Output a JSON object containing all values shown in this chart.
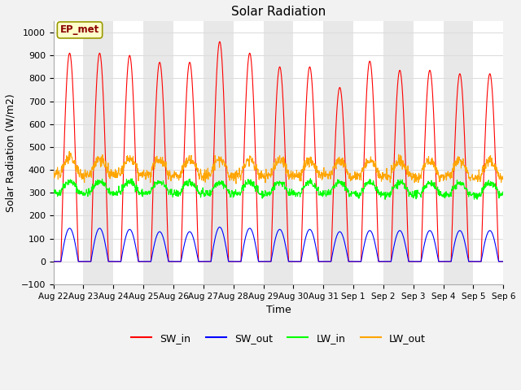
{
  "title": "Solar Radiation",
  "xlabel": "Time",
  "ylabel": "Solar Radiation (W/m2)",
  "ylim": [
    -100,
    1050
  ],
  "xlim": [
    0,
    15
  ],
  "x_tick_labels": [
    "Aug 22",
    "Aug 23",
    "Aug 24",
    "Aug 25",
    "Aug 26",
    "Aug 27",
    "Aug 28",
    "Aug 29",
    "Aug 30",
    "Aug 31",
    "Sep 1",
    "Sep 2",
    "Sep 3",
    "Sep 4",
    "Sep 5",
    "Sep 6"
  ],
  "annotation_text": "EP_met",
  "annotation_box_color": "#FFFFCC",
  "annotation_box_edge": "#AAAAAA",
  "colors": {
    "SW_in": "#FF0000",
    "SW_out": "#0000FF",
    "LW_in": "#00FF00",
    "LW_out": "#FFA500"
  },
  "legend_labels": [
    "SW_in",
    "SW_out",
    "LW_in",
    "LW_out"
  ],
  "bg_color": "#FFFFFF",
  "grid_color": "#DDDDDD",
  "alt_band_color": "#E8E8E8",
  "fig_bg_color": "#F2F2F2",
  "SW_in_peaks": [
    910,
    910,
    900,
    870,
    870,
    960,
    910,
    850,
    850,
    760,
    875,
    835,
    835,
    820,
    820
  ],
  "SW_out_peaks": [
    145,
    145,
    140,
    130,
    130,
    150,
    145,
    140,
    140,
    130,
    135,
    135,
    135,
    135,
    135
  ],
  "LW_in_base": 310,
  "LW_out_base": 390,
  "n_days": 15,
  "pts_per_day": 96
}
